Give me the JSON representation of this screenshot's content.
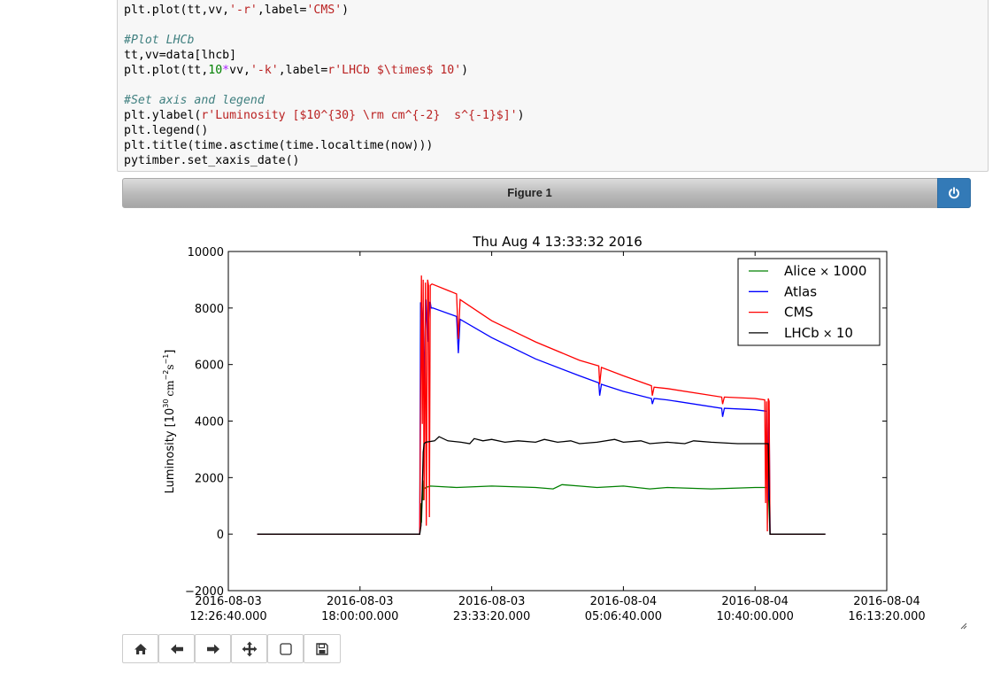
{
  "code": {
    "lines": [
      [
        [
          "plt.plot(tt,vv,",
          ""
        ],
        [
          "'-r'",
          "s"
        ],
        [
          ",label=",
          ""
        ],
        [
          "'CMS'",
          "s"
        ],
        [
          ")",
          ""
        ]
      ],
      [],
      [
        [
          "#Plot LHCb",
          "c"
        ]
      ],
      [
        [
          "tt,vv=data[lhcb]",
          ""
        ]
      ],
      [
        [
          "plt.plot(tt,",
          ""
        ],
        [
          "10",
          "n"
        ],
        [
          "*",
          "o"
        ],
        [
          "vv,",
          ""
        ],
        [
          "'-k'",
          "s"
        ],
        [
          ",label=",
          ""
        ],
        [
          "r'LHCb $\\times$ 10'",
          "s"
        ],
        [
          ")",
          ""
        ]
      ],
      [],
      [
        [
          "#Set axis and legend",
          "c"
        ]
      ],
      [
        [
          "plt.ylabel(",
          ""
        ],
        [
          "r'Luminosity [$10^{30} \\rm cm^{-2}  s^{-1}$]'",
          "s"
        ],
        [
          ")",
          ""
        ]
      ],
      [
        [
          "plt.legend()",
          ""
        ]
      ],
      [
        [
          "plt.title(time.asctime(time.localtime(now)))",
          ""
        ]
      ],
      [
        [
          "pytimber.set_xaxis_date()",
          ""
        ]
      ]
    ]
  },
  "figure": {
    "header_title": "Figure 1",
    "power_icon": "power-icon"
  },
  "chart_data": {
    "type": "line",
    "title": "Thu Aug  4 13:33:32 2016",
    "xlabel": "",
    "ylabel": "Luminosity [10",
    "ylabel_sup1": "30",
    "ylabel_unit": "cm",
    "ylabel_sup2": "−2",
    "ylabel_unit2": "s",
    "ylabel_sup3": "−1",
    "ylabel_close": "]",
    "xlim": [
      0,
      75000
    ],
    "ylim": [
      -2000,
      10000
    ],
    "xticks": [
      {
        "x": 0,
        "label": [
          "2016-08-03",
          "12:26:40.000"
        ]
      },
      {
        "x": 15000,
        "label": [
          "2016-08-03",
          "18:00:00.000"
        ]
      },
      {
        "x": 30000,
        "label": [
          "2016-08-03",
          "23:33:20.000"
        ]
      },
      {
        "x": 45000,
        "label": [
          "2016-08-04",
          "05:06:40.000"
        ]
      },
      {
        "x": 60000,
        "label": [
          "2016-08-04",
          "10:40:00.000"
        ]
      },
      {
        "x": 75000,
        "label": [
          "2016-08-04",
          "16:13:20.000"
        ]
      }
    ],
    "yticks": [
      {
        "y": 10000,
        "label": "10000"
      },
      {
        "y": 8000,
        "label": "8000"
      },
      {
        "y": 6000,
        "label": "6000"
      },
      {
        "y": 4000,
        "label": "4000"
      },
      {
        "y": 2000,
        "label": "2000"
      },
      {
        "y": 0,
        "label": "0"
      },
      {
        "y": -2000,
        "label": "−2000"
      }
    ],
    "legend_position": "upper right",
    "grid": false,
    "series": [
      {
        "name": "Alice",
        "suffix": "1000",
        "color": "#008000",
        "x": [
          3300,
          21800,
          21900,
          22000,
          22150,
          22200,
          22300,
          22500,
          23000,
          26000,
          30000,
          35000,
          37000,
          38000,
          40000,
          42000,
          45000,
          48000,
          50000,
          55000,
          60000,
          61500,
          61700,
          61800,
          68000
        ],
        "y": [
          0,
          0,
          1100,
          400,
          1900,
          1200,
          1600,
          1650,
          1700,
          1650,
          1700,
          1650,
          1600,
          1750,
          1700,
          1650,
          1700,
          1600,
          1650,
          1600,
          1650,
          1650,
          0,
          0,
          0
        ]
      },
      {
        "name": "Atlas",
        "color": "#0000ff",
        "x": [
          3300,
          21800,
          21900,
          22000,
          22200,
          22300,
          22500,
          22700,
          22900,
          23000,
          23100,
          23300,
          26000,
          26200,
          26400,
          30000,
          35000,
          40000,
          42200,
          42300,
          42500,
          45000,
          48200,
          48300,
          48500,
          50000,
          56200,
          56300,
          56500,
          60000,
          61300,
          61500,
          61600,
          61700,
          61900,
          68000
        ],
        "y": [
          0,
          0,
          8200,
          7000,
          8100,
          5000,
          8300,
          6800,
          8200,
          8200,
          8000,
          8000,
          7700,
          6400,
          7600,
          6950,
          6200,
          5600,
          5350,
          4900,
          5300,
          5050,
          4800,
          4600,
          4800,
          4750,
          4450,
          4150,
          4450,
          4400,
          4350,
          1200,
          4400,
          0,
          0,
          0
        ]
      },
      {
        "name": "CMS",
        "color": "#ff0000",
        "x": [
          3300,
          21800,
          21900,
          22000,
          22100,
          22200,
          22300,
          22450,
          22550,
          22700,
          22800,
          22900,
          23000,
          23200,
          26000,
          26200,
          26400,
          30000,
          35000,
          40000,
          42200,
          42300,
          42500,
          45000,
          48200,
          48300,
          48500,
          50000,
          56200,
          56300,
          56500,
          60000,
          61100,
          61200,
          61300,
          61400,
          61500,
          61600,
          61700,
          61900,
          68000
        ],
        "y": [
          0,
          0,
          4500,
          9150,
          3900,
          9000,
          1200,
          8900,
          300,
          9000,
          8800,
          600,
          8800,
          8850,
          8500,
          6900,
          8300,
          7550,
          6800,
          6150,
          5950,
          5300,
          5900,
          5600,
          5250,
          4900,
          5200,
          5150,
          4850,
          4600,
          4850,
          4800,
          4750,
          1100,
          4700,
          100,
          4800,
          4700,
          0,
          0,
          0
        ]
      },
      {
        "name": "LHCb",
        "suffix": "10",
        "color": "#000000",
        "x": [
          3300,
          21800,
          21950,
          22100,
          22200,
          22300,
          22500,
          23500,
          24000,
          25000,
          26500,
          27500,
          28000,
          29000,
          30000,
          31500,
          33000,
          35000,
          36000,
          37500,
          39000,
          40000,
          42000,
          44000,
          45000,
          47000,
          48000,
          50000,
          52000,
          53000,
          55000,
          58000,
          60000,
          61500,
          61700,
          61800,
          68000
        ],
        "y": [
          0,
          0,
          300,
          1600,
          2900,
          3200,
          3250,
          3300,
          3450,
          3300,
          3250,
          3200,
          3380,
          3300,
          3350,
          3250,
          3300,
          3250,
          3350,
          3250,
          3300,
          3200,
          3250,
          3350,
          3250,
          3300,
          3200,
          3250,
          3200,
          3300,
          3250,
          3200,
          3200,
          3200,
          0,
          0,
          0
        ]
      }
    ]
  },
  "toolbar": {
    "buttons": [
      "home-icon",
      "back-arrow-icon",
      "forward-arrow-icon",
      "pan-move-icon",
      "zoom-rect-icon",
      "save-icon"
    ]
  }
}
